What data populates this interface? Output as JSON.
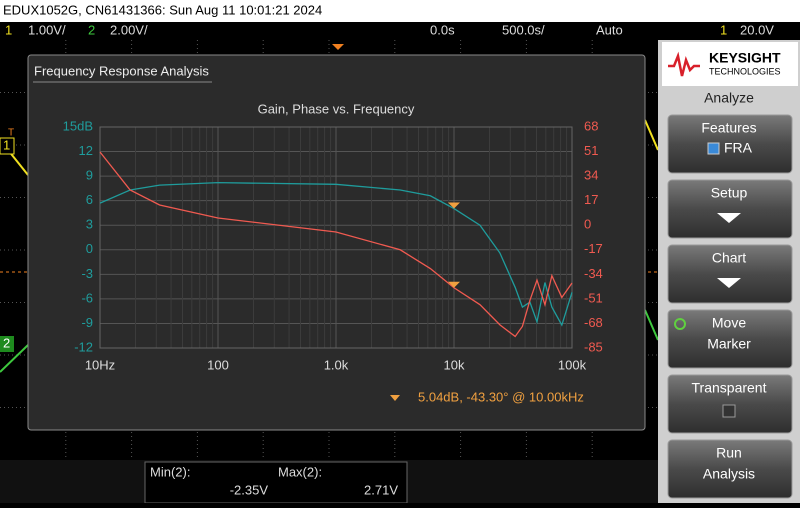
{
  "header": {
    "title": "EDUX1052G, CN61431366: Sun Aug 11 10:01:21 2024"
  },
  "status_bar": {
    "ch1": "1",
    "ch1_scale": "1.00V/",
    "ch2": "2",
    "ch2_scale": "2.00V/",
    "delay": "0.0s",
    "timebase": "500.0s/",
    "trigger_mode": "Auto",
    "trigger_source": "1",
    "trigger_level": "20.0V"
  },
  "channel_markers": {
    "trigger": "T",
    "ch1": "1",
    "ch2": "2"
  },
  "window_title": "Frequency Response Analysis",
  "chart_data": {
    "type": "line",
    "title": "Gain, Phase vs. Frequency",
    "x": [
      10,
      18,
      32,
      100,
      1000,
      3500,
      6300,
      10000,
      16600,
      24500,
      33000,
      38000,
      44000,
      50500,
      59000,
      67500,
      82000,
      100000
    ],
    "xscale": "log",
    "xlim": [
      10,
      100000
    ],
    "xticks": [
      {
        "value": 10,
        "label": "10Hz"
      },
      100,
      {
        "value": 1000,
        "label": "1.0k"
      },
      {
        "value": 10000,
        "label": "10k"
      },
      {
        "value": 100000,
        "label": "100k"
      }
    ],
    "ylim": [
      -12,
      15
    ],
    "yticks": [
      {
        "value": 15,
        "label": "15dB"
      },
      12,
      9,
      6,
      3,
      0,
      -3,
      -6,
      -9,
      -12
    ],
    "y2lim": [
      -85,
      68
    ],
    "y2ticks": [
      68,
      51,
      34,
      17,
      0,
      -17,
      -34,
      -51,
      -68,
      -85
    ],
    "grid": true,
    "series": [
      {
        "name": "Gain",
        "color": "#1f9c9c",
        "values": [
          5.7,
          7.3,
          7.9,
          8.2,
          8.0,
          7.3,
          6.6,
          5.04,
          3.0,
          -0.4,
          -4.6,
          -7,
          -6.4,
          -8.8,
          -4,
          -7,
          -9.2,
          -5.2
        ]
      },
      {
        "name": "Phase",
        "color": "#f05a50",
        "axis": "y2",
        "values": [
          50.7,
          24.4,
          14,
          5,
          -4.7,
          -17,
          -30,
          -43.3,
          -55,
          -69,
          -77,
          -70,
          -52,
          -38,
          -55,
          -35,
          -50,
          -40
        ]
      }
    ],
    "marker": {
      "x": 10000,
      "gain": 5.04,
      "phase": -43.3,
      "color": "#f0a040",
      "label": "5.04dB, -43.30° @ 10.00kHz"
    }
  },
  "side_menu": {
    "brand": "KEYSIGHT",
    "brand_sub": "TECHNOLOGIES",
    "title": "Analyze",
    "buttons": [
      {
        "lines": [
          "Features"
        ],
        "option": "FRA"
      },
      {
        "lines": [
          "Setup"
        ]
      },
      {
        "lines": [
          "Chart"
        ]
      },
      {
        "lines": [
          "Move",
          "Marker"
        ]
      },
      {
        "lines": [
          "Transparent"
        ]
      },
      {
        "lines": [
          "Run",
          "Analysis"
        ]
      }
    ]
  },
  "measurements": [
    {
      "label": "Min(2):",
      "value": "-2.35V"
    },
    {
      "label": "Max(2):",
      "value": "2.71V"
    }
  ]
}
